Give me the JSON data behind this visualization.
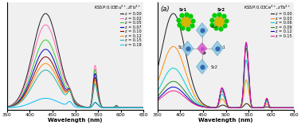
{
  "left_title": "KSSP:0.03Eu$^{2+}$,zTb$^{3+}$",
  "right_title": "KSSP:0.03Ce$^{3+}$,zTb$^{3+}$",
  "xlabel": "Wavelength (nm)",
  "xmin": 350,
  "xmax": 650,
  "left_legend_labels": [
    "z = 0.00",
    "z = 0.02",
    "z = 0.05",
    "z = 0.07",
    "z = 0.10",
    "z = 0.12",
    "z = 0.15",
    "z = 0.18"
  ],
  "left_legend_colors": [
    "#1a1a1a",
    "#ff69b4",
    "#32cd32",
    "#0000cd",
    "#8b0000",
    "#ff8c00",
    "#20b2aa",
    "#00bfff"
  ],
  "right_legend_labels": [
    "z = 0.00",
    "z = 0.03",
    "z = 0.06",
    "z = 0.09",
    "z = 0.12",
    "z = 0.15"
  ],
  "right_legend_colors": [
    "#1a1a1a",
    "#ff8c00",
    "#00ced1",
    "#228b22",
    "#0000cd",
    "#ff1493"
  ],
  "right_panel_label": "(a)",
  "bg_color": "#f0f0f0"
}
